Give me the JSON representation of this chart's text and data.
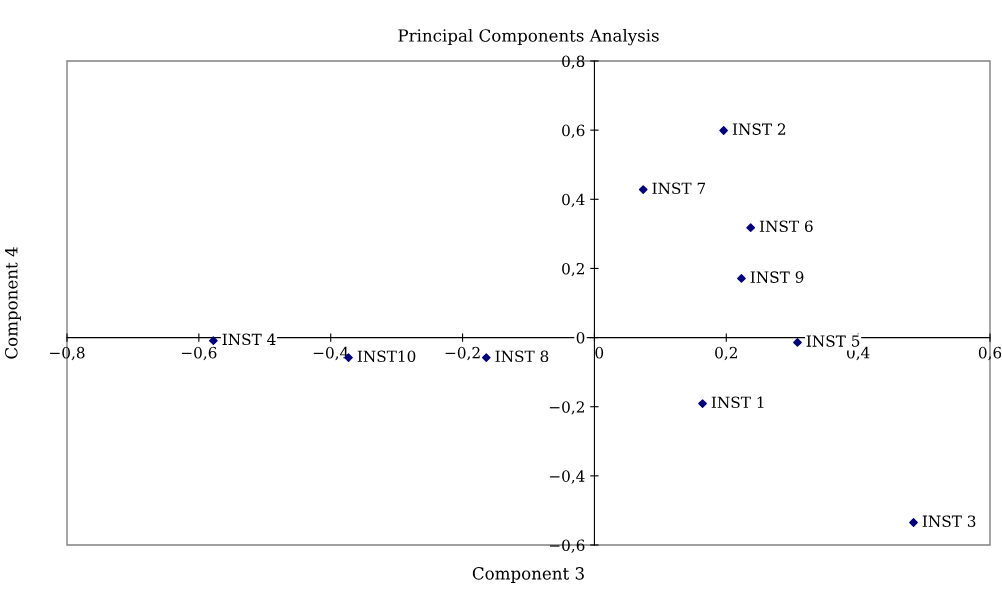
{
  "chart_data": {
    "type": "scatter",
    "title": "Principal Components Analysis",
    "xlabel": "Component 3",
    "ylabel": "Component 4",
    "x": [
      0.164,
      0.196,
      0.484,
      -0.578,
      0.308,
      0.237,
      0.074,
      -0.164,
      0.223,
      -0.373
    ],
    "series": [
      {
        "color": "#000080",
        "values": [
          -0.191,
          0.599,
          -0.535,
          -0.009,
          -0.014,
          0.318,
          0.428,
          -0.058,
          0.171,
          -0.058
        ]
      }
    ],
    "annotations": [
      {
        "text": "INST 1",
        "x": 0.164,
        "y": -0.191
      },
      {
        "text": "INST 2",
        "x": 0.196,
        "y": 0.599
      },
      {
        "text": "INST 3",
        "x": 0.484,
        "y": -0.535
      },
      {
        "text": "INST 4",
        "x": -0.578,
        "y": -0.009
      },
      {
        "text": "INST 5",
        "x": 0.308,
        "y": -0.014
      },
      {
        "text": "INST 6",
        "x": 0.237,
        "y": 0.318
      },
      {
        "text": "INST 7",
        "x": 0.074,
        "y": 0.428
      },
      {
        "text": "INST 8",
        "x": -0.164,
        "y": -0.058
      },
      {
        "text": "INST 9",
        "x": 0.223,
        "y": 0.171
      },
      {
        "text": "INST10",
        "x": -0.373,
        "y": -0.058
      }
    ],
    "xlim": [
      -0.8,
      0.6
    ],
    "ylim": [
      -0.6,
      0.8
    ],
    "xticks": [
      {
        "value": -0.8,
        "label": "−0,8"
      },
      {
        "value": -0.6,
        "label": "−0,6"
      },
      {
        "value": -0.4,
        "label": "−0,4"
      },
      {
        "value": -0.2,
        "label": "−0,2"
      },
      0,
      {
        "value": 0.2,
        "label": "0,2"
      },
      {
        "value": 0.4,
        "label": "0,4"
      },
      {
        "value": 0.6,
        "label": "0,6"
      }
    ],
    "yticks": [
      {
        "value": -0.6,
        "label": "−0,6"
      },
      {
        "value": -0.4,
        "label": "−0,4"
      },
      {
        "value": -0.2,
        "label": "−0,2"
      },
      0,
      {
        "value": 0.2,
        "label": "0,2"
      },
      {
        "value": 0.4,
        "label": "0,4"
      },
      {
        "value": 0.6,
        "label": "0,6"
      },
      {
        "value": 0.8,
        "label": "0,8"
      }
    ],
    "marker": "diamond",
    "grid": false,
    "legend": false
  }
}
